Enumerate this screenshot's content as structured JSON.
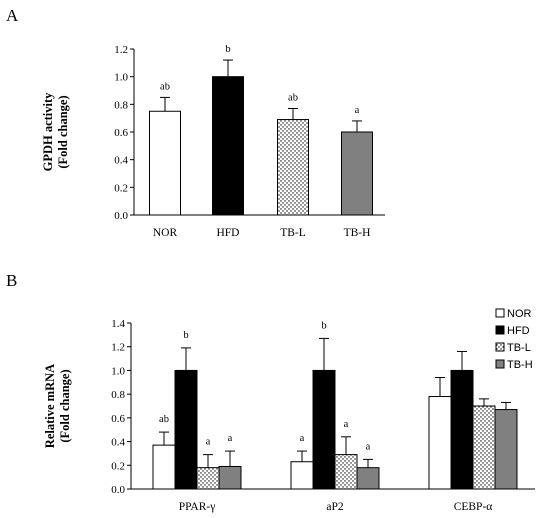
{
  "panels": [
    {
      "letter": "A"
    },
    {
      "letter": "B"
    }
  ],
  "colors": {
    "NOR": "#ffffff",
    "HFD": "#000000",
    "TB-H": "#808080",
    "TB-L": "dotted"
  },
  "chart_data": [
    {
      "type": "bar",
      "title": "",
      "xlabel": "",
      "ylabel": [
        "GPDH activity",
        "(Fold change)"
      ],
      "ylim": [
        0,
        1.2
      ],
      "yticks": [
        "0.0",
        "0.2",
        "0.4",
        "0.6",
        "0.8",
        "1.0",
        "1.2"
      ],
      "categories": [
        "NOR",
        "HFD",
        "TB-L",
        "TB-H"
      ],
      "values": [
        0.75,
        1.0,
        0.69,
        0.6
      ],
      "errors": [
        0.1,
        0.12,
        0.08,
        0.08
      ],
      "letters": [
        "ab",
        "b",
        "ab",
        "a"
      ],
      "grid": false
    },
    {
      "type": "bar",
      "title": "",
      "xlabel": "",
      "ylabel": [
        "Relative mRNA",
        "(Fold change)"
      ],
      "ylim": [
        0,
        1.4
      ],
      "yticks": [
        "0.0",
        "0.2",
        "0.4",
        "0.6",
        "0.8",
        "1.0",
        "1.2",
        "1.4"
      ],
      "categories": [
        "PPAR-γ",
        "aP2",
        "CEBP-α"
      ],
      "legend_position": "top-right",
      "grid": false,
      "series": [
        {
          "name": "NOR",
          "values": [
            0.37,
            0.23,
            0.78
          ],
          "errors": [
            0.11,
            0.09,
            0.16
          ],
          "letters": [
            "ab",
            "a",
            ""
          ]
        },
        {
          "name": "HFD",
          "values": [
            1.0,
            1.0,
            1.0
          ],
          "errors": [
            0.19,
            0.27,
            0.16
          ],
          "letters": [
            "b",
            "b",
            ""
          ]
        },
        {
          "name": "TB-L",
          "values": [
            0.18,
            0.29,
            0.7
          ],
          "errors": [
            0.11,
            0.15,
            0.06
          ],
          "letters": [
            "a",
            "a",
            ""
          ]
        },
        {
          "name": "TB-H",
          "values": [
            0.19,
            0.18,
            0.67
          ],
          "errors": [
            0.13,
            0.07,
            0.06
          ],
          "letters": [
            "a",
            "a",
            ""
          ]
        }
      ]
    }
  ]
}
